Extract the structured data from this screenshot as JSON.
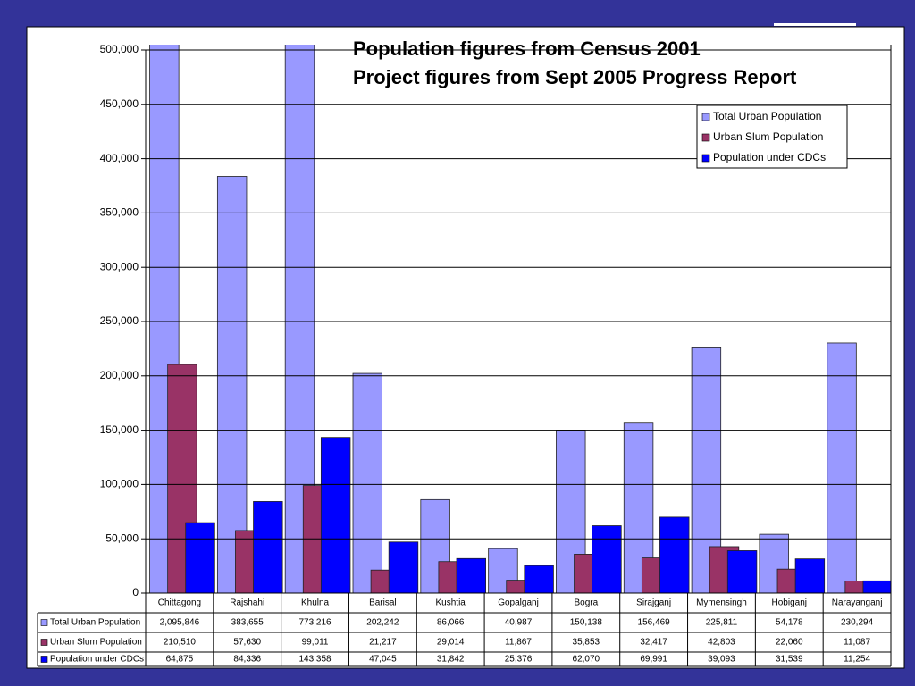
{
  "chart_data": {
    "type": "bar",
    "title": "Population figures from Census 2001",
    "subtitle": "Project figures from Sept 2005 Progress Report",
    "categories": [
      "Chittagong",
      "Rajshahi",
      "Khulna",
      "Barisal",
      "Kushtia",
      "Gopalganj",
      "Bogra",
      "Sirajganj",
      "Mymensingh",
      "Hobiganj",
      "Narayanganj"
    ],
    "series": [
      {
        "name": "Total Urban Population",
        "color": "#9999ff",
        "values": [
          2095846,
          383655,
          773216,
          202242,
          86066,
          40987,
          150138,
          156469,
          225811,
          54178,
          230294
        ],
        "value_labels": [
          "2,095,846",
          "383,655",
          "773,216",
          "202,242",
          "86,066",
          "40,987",
          "150,138",
          "156,469",
          "225,811",
          "54,178",
          "230,294"
        ]
      },
      {
        "name": "Urban Slum Population",
        "color": "#993366",
        "values": [
          210510,
          57630,
          99011,
          21217,
          29014,
          11867,
          35853,
          32417,
          42803,
          22060,
          11087
        ],
        "value_labels": [
          "210,510",
          "57,630",
          "99,011",
          "21,217",
          "29,014",
          "11,867",
          "35,853",
          "32,417",
          "42,803",
          "22,060",
          "11,087"
        ]
      },
      {
        "name": "Population under CDCs",
        "color": "#0000ff",
        "values": [
          64875,
          84336,
          143358,
          47045,
          31842,
          25376,
          62070,
          69991,
          39093,
          31539,
          11254
        ],
        "value_labels": [
          "64,875",
          "84,336",
          "143,358",
          "47,045",
          "31,842",
          "25,376",
          "62,070",
          "69,991",
          "39,093",
          "31,539",
          "11,254"
        ]
      }
    ],
    "ylim": [
      0,
      500000
    ],
    "yticks": [
      0,
      {
        "value": 50000,
        "label": "50,000"
      },
      {
        "value": 100000,
        "label": "100,000"
      },
      {
        "value": 150000,
        "label": "150,000"
      },
      {
        "value": 200000,
        "label": "200,000"
      },
      {
        "value": 250000,
        "label": "250,000"
      },
      {
        "value": 300000,
        "label": "300,000"
      },
      {
        "value": 350000,
        "label": "350,000"
      },
      {
        "value": 400000,
        "label": "400,000"
      },
      {
        "value": 450000,
        "label": "450,000"
      },
      {
        "value": 500000,
        "label": "500,000"
      }
    ],
    "grid": true,
    "legend": "upper right"
  }
}
